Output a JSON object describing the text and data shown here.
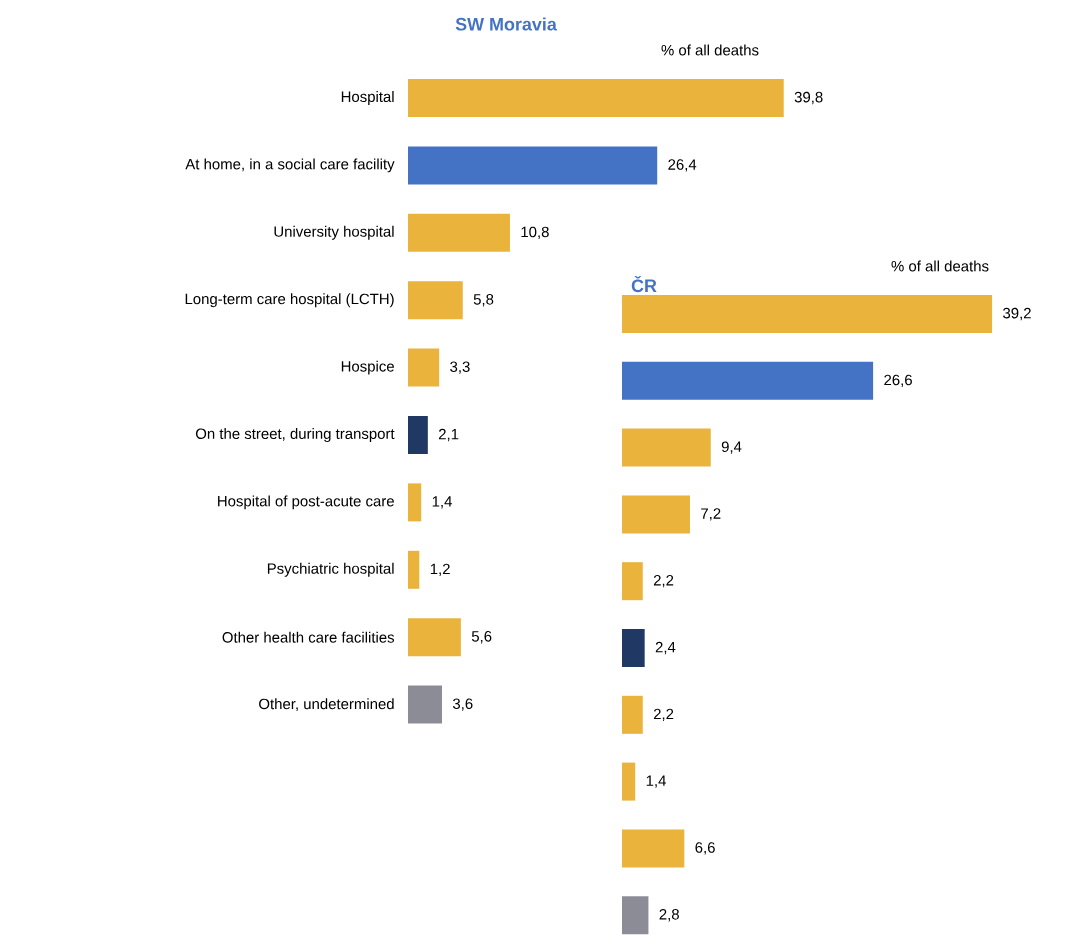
{
  "chart_data": [
    {
      "type": "bar",
      "orientation": "horizontal",
      "title": "SW Moravia",
      "subtitle": "% of all deaths",
      "tick_labels": "y",
      "categories": [
        "Hospital",
        "At home, in a social care facility",
        "University hospital",
        "Long-term care hospital (LCTH)",
        "Hospice",
        "On the street, during transport",
        "Hospital of post-acute care",
        "Psychiatric hospital",
        "Other health care facilities",
        "Other, undetermined"
      ],
      "values": [
        39.8,
        26.4,
        10.8,
        5.8,
        3.3,
        2.1,
        1.4,
        1.2,
        5.6,
        3.6
      ],
      "value_labels": [
        "39,8",
        "26,4",
        "10,8",
        "5,8",
        "3,3",
        "2,1",
        "1,4",
        "1,2",
        "5,6",
        "3,6"
      ],
      "colors": [
        "#e9b33c",
        "#4472c4",
        "#e9b33c",
        "#e9b33c",
        "#e9b33c",
        "#1f3864",
        "#e9b33c",
        "#e9b33c",
        "#e9b33c",
        "#8c8c96"
      ]
    },
    {
      "type": "bar",
      "orientation": "horizontal",
      "title": "ČR",
      "subtitle": "% of all deaths",
      "categories": [
        null,
        null,
        null,
        null,
        null,
        null,
        null,
        null,
        null,
        null
      ],
      "values": [
        39.2,
        26.6,
        9.4,
        7.2,
        2.2,
        2.4,
        2.2,
        1.4,
        6.6,
        2.8
      ],
      "value_labels": [
        "39,2",
        "26,6",
        "9,4",
        "7,2",
        "2,2",
        "2,4",
        "2,2",
        "1,4",
        "6,6",
        "2,8"
      ],
      "colors": [
        "#e9b33c",
        "#4472c4",
        "#e9b33c",
        "#e9b33c",
        "#e9b33c",
        "#1f3864",
        "#e9b33c",
        "#e9b33c",
        "#e9b33c",
        "#8c8c96"
      ]
    }
  ]
}
